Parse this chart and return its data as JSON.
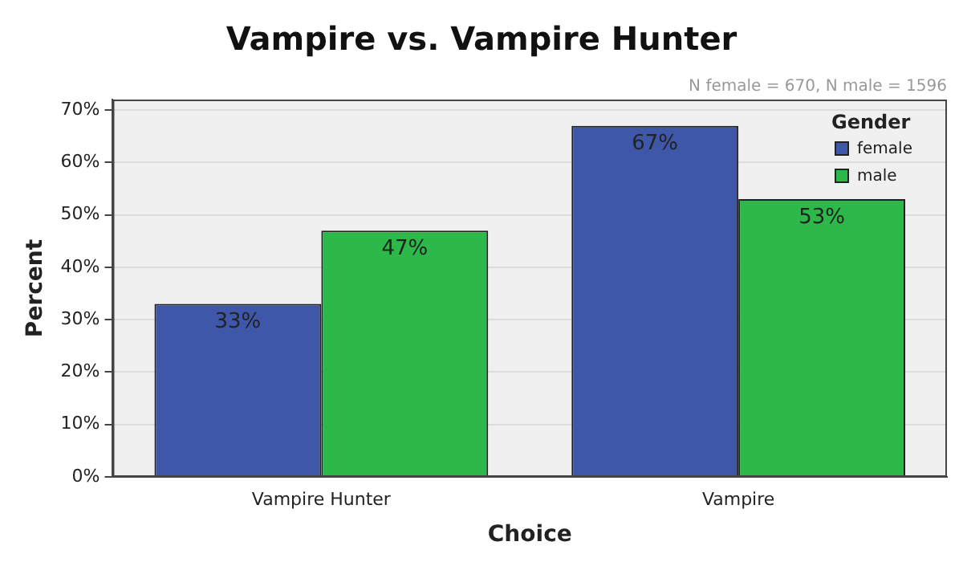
{
  "chart_data": {
    "type": "bar",
    "title": "Vampire vs. Vampire Hunter",
    "xlabel": "Choice",
    "ylabel": "Percent",
    "legend_title": "Gender",
    "annotations": [
      "N female = 670, N male = 1596"
    ],
    "categories": [
      "Vampire Hunter",
      "Vampire"
    ],
    "series": [
      {
        "name": "female",
        "color": "#3f57a8",
        "values": [
          33,
          67
        ],
        "value_labels": [
          "33%",
          "67%"
        ]
      },
      {
        "name": "male",
        "color": "#2db84a",
        "values": [
          47,
          53
        ],
        "value_labels": [
          "47%",
          "53%"
        ]
      }
    ],
    "ylim": [
      0,
      72
    ],
    "yticks": [
      {
        "value": 0,
        "label": "0%"
      },
      {
        "value": 10,
        "label": "10%"
      },
      {
        "value": 20,
        "label": "20%"
      },
      {
        "value": 30,
        "label": "30%"
      },
      {
        "value": 40,
        "label": "40%"
      },
      {
        "value": 50,
        "label": "50%"
      },
      {
        "value": 60,
        "label": "60%"
      },
      {
        "value": 70,
        "label": "70%"
      }
    ],
    "grid": "y",
    "legend": "top right"
  }
}
